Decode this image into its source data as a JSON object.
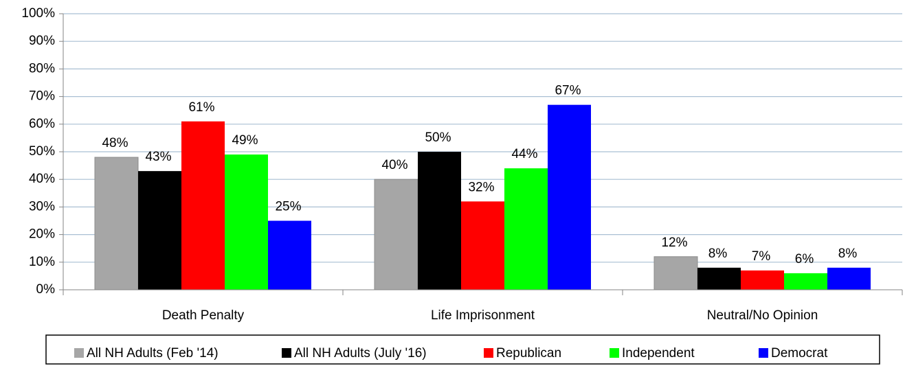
{
  "chart_data": {
    "type": "bar",
    "categories": [
      "Death Penalty",
      "Life Imprisonment",
      "Neutral/No Opinion"
    ],
    "series": [
      {
        "name": "All NH Adults (Feb '14)",
        "color": "#a6a6a6",
        "values": [
          48,
          40,
          12
        ],
        "value_labels": [
          "48%",
          "40%",
          "12%"
        ]
      },
      {
        "name": "All NH Adults (July '16)",
        "color": "#000000",
        "values": [
          43,
          50,
          8
        ],
        "value_labels": [
          "43%",
          "50%",
          "8%"
        ]
      },
      {
        "name": "Republican",
        "color": "#ff0000",
        "values": [
          61,
          32,
          7
        ],
        "value_labels": [
          "61%",
          "32%",
          "7%"
        ]
      },
      {
        "name": "Independent",
        "color": "#00ff00",
        "values": [
          49,
          44,
          6
        ],
        "value_labels": [
          "49%",
          "44%",
          "6%"
        ]
      },
      {
        "name": "Democrat",
        "color": "#0000ff",
        "values": [
          25,
          67,
          8
        ],
        "value_labels": [
          "25%",
          "67%",
          "8%"
        ]
      }
    ],
    "ylim": [
      0,
      100
    ],
    "yticks": [
      {
        "value": 0,
        "label": "0%"
      },
      {
        "value": 10,
        "label": "10%"
      },
      {
        "value": 20,
        "label": "20%"
      },
      {
        "value": 30,
        "label": "30%"
      },
      {
        "value": 40,
        "label": "40%"
      },
      {
        "value": 50,
        "label": "50%"
      },
      {
        "value": 60,
        "label": "60%"
      },
      {
        "value": 70,
        "label": "70%"
      },
      {
        "value": 80,
        "label": "80%"
      },
      {
        "value": 90,
        "label": "90%"
      },
      {
        "value": 100,
        "label": "100%"
      }
    ],
    "grid": true,
    "legend": "bottom"
  }
}
